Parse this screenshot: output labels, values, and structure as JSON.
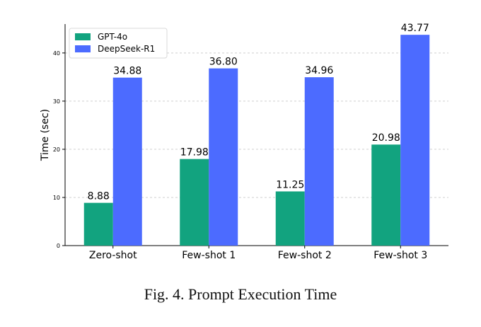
{
  "caption": "Fig. 4.  Prompt Execution Time",
  "chart_data": {
    "type": "bar",
    "title": "",
    "xlabel": "",
    "ylabel": "Time (sec)",
    "categories": [
      "Zero-shot",
      "Few-shot 1",
      "Few-shot 2",
      "Few-shot 3"
    ],
    "series": [
      {
        "name": "GPT-4o",
        "color": "#12a37f",
        "values": [
          8.88,
          17.98,
          11.25,
          20.98
        ]
      },
      {
        "name": "DeepSeek-R1",
        "color": "#4c6bff",
        "values": [
          34.88,
          36.8,
          34.96,
          43.77
        ]
      }
    ],
    "ylim": [
      0,
      46
    ],
    "yticks": [
      0,
      10,
      20,
      30,
      40
    ],
    "grid": true,
    "legend_position": "top-left",
    "value_label_format": "2-decimals"
  }
}
